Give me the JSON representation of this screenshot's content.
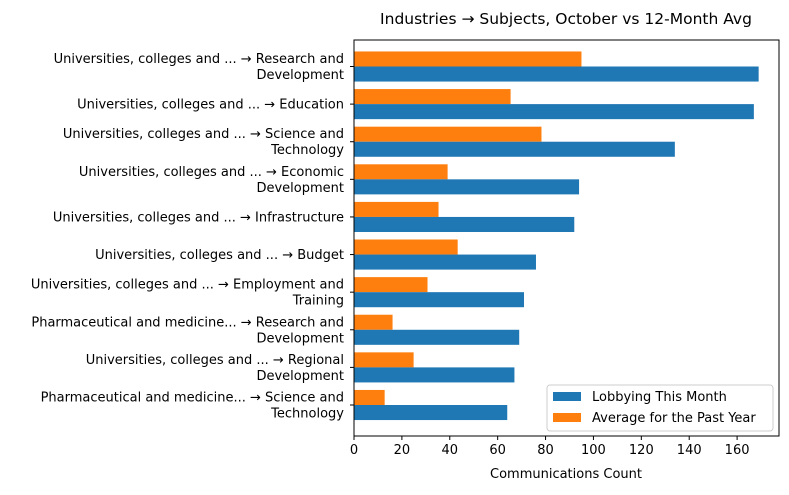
{
  "chart_data": {
    "type": "bar",
    "orientation": "horizontal",
    "title": "Industries → Subjects, October vs 12-Month Avg",
    "xlabel": "Communications Count",
    "ylabel": "",
    "xlim": [
      0,
      177.5
    ],
    "xticks": [
      0,
      20,
      40,
      60,
      80,
      100,
      120,
      140,
      160
    ],
    "grid": false,
    "legend_position": "bottom-right",
    "categories": [
      [
        "Universities, colleges and ... → Research and",
        "Development"
      ],
      [
        "Universities, colleges and ... → Education"
      ],
      [
        "Universities, colleges and ... → Science and",
        "Technology"
      ],
      [
        "Universities, colleges and ... → Economic",
        "Development"
      ],
      [
        "Universities, colleges and ... → Infrastructure"
      ],
      [
        "Universities, colleges and ... → Budget"
      ],
      [
        "Universities, colleges and ... → Employment and",
        "Training"
      ],
      [
        "Pharmaceutical and medicine... → Research and",
        "Development"
      ],
      [
        "Universities, colleges and ... → Regional",
        "Development"
      ],
      [
        "Pharmaceutical and medicine... → Science and",
        "Technology"
      ]
    ],
    "series": [
      {
        "name": "Lobbying This Month",
        "color": "#1f77b4",
        "values": [
          169,
          167,
          134,
          94,
          92,
          76,
          71,
          69,
          67,
          64
        ]
      },
      {
        "name": "Average for the Past Year",
        "color": "#ff7f0e",
        "values": [
          95.0,
          65.4,
          78.3,
          39.1,
          35.3,
          43.3,
          30.7,
          16.1,
          24.9,
          12.8
        ]
      }
    ]
  }
}
